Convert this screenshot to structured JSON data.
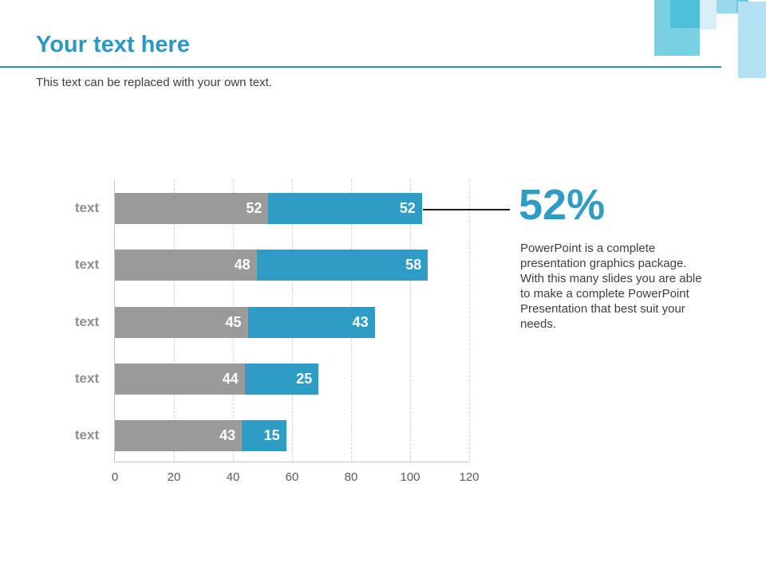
{
  "slide": {
    "title": "Your text here",
    "subtitle": "This text can be replaced with your own text.",
    "callout": {
      "value": "52%",
      "description": "PowerPoint is a complete presentation graphics package. With this many slides you are able to make a complete PowerPoint Presentation that best suit your needs."
    },
    "colors": {
      "accent": "#2B97C3",
      "bar_blue": "#2E9DC6",
      "bar_gray": "#9A9A9A",
      "body_text": "#3F3F3F",
      "category_label": "#8E8E8E",
      "axis_label": "#5A5A5A"
    }
  },
  "chart_data": {
    "type": "bar",
    "orientation": "horizontal",
    "stacked": true,
    "title": "",
    "xlabel": "",
    "ylabel": "",
    "categories": [
      "text",
      "text",
      "text",
      "text",
      "text"
    ],
    "series": [
      {
        "name": "gray-segment",
        "color": "#9A9A9A",
        "values": [
          52,
          48,
          45,
          44,
          43
        ]
      },
      {
        "name": "blue-segment",
        "color": "#2E9DC6",
        "values": [
          52,
          58,
          43,
          25,
          15
        ]
      }
    ],
    "totals": [
      104,
      106,
      88,
      69,
      58
    ],
    "xlim": [
      0,
      120
    ],
    "xticks": [
      0,
      20,
      40,
      60,
      80,
      100,
      120
    ],
    "grid": "vertical-dashed",
    "legend": "none",
    "value_labels": "inside-end-white"
  }
}
